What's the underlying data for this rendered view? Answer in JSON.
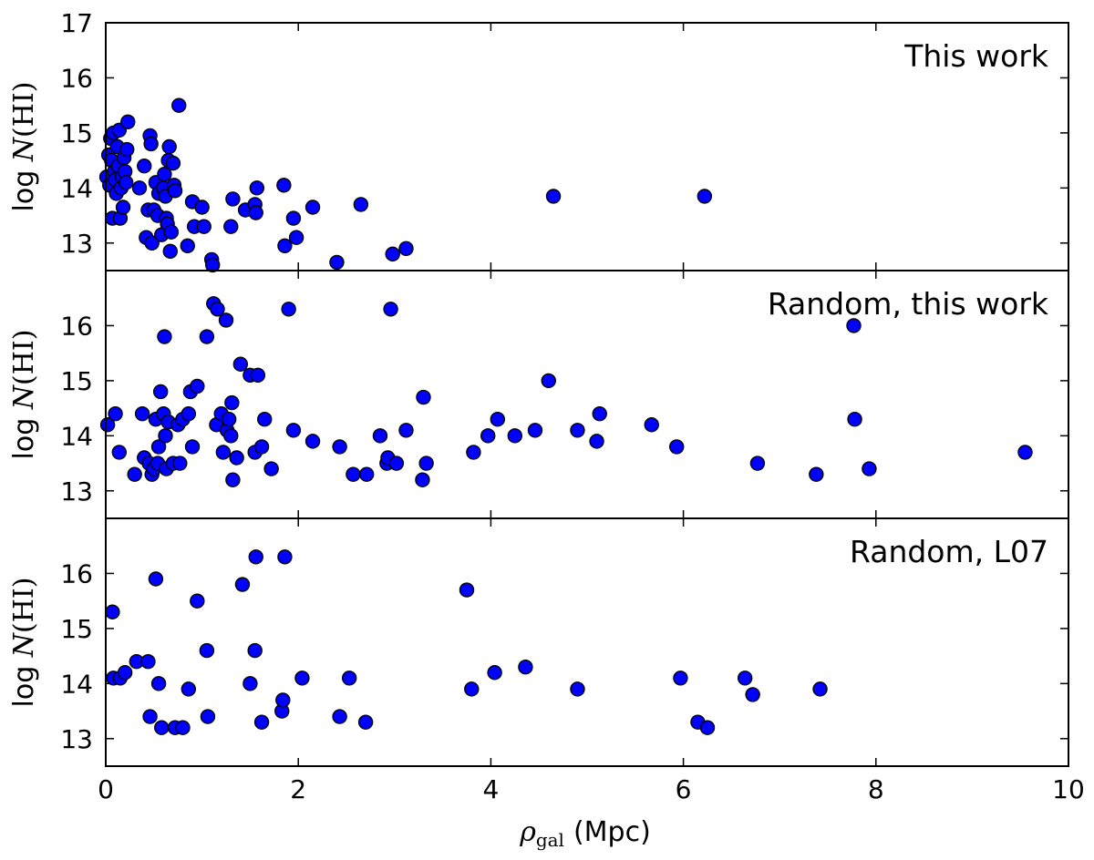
{
  "chart_data": {
    "type": "scatter",
    "x_axis": {
      "label_symbol": "ρ",
      "label_subscript": "gal",
      "label_unit": "(Mpc)",
      "range": [
        0,
        10
      ],
      "ticks": [
        0,
        2,
        4,
        6,
        8,
        10
      ]
    },
    "y_axis": {
      "label_prefix": "log",
      "label_symbol": "N",
      "label_paren": "(HI)"
    },
    "grid": false,
    "marker_color": "#0000ff",
    "panels": [
      {
        "label": "This work",
        "ylim": [
          12.5,
          17
        ],
        "yticks": [
          13,
          14,
          15,
          16,
          17
        ],
        "points": [
          [
            0.01,
            14.2
          ],
          [
            0.03,
            14.6
          ],
          [
            0.04,
            14.05
          ],
          [
            0.05,
            14.9
          ],
          [
            0.06,
            14.5
          ],
          [
            0.07,
            13.45
          ],
          [
            0.08,
            15.0
          ],
          [
            0.09,
            14.3
          ],
          [
            0.1,
            14.15
          ],
          [
            0.11,
            13.9
          ],
          [
            0.12,
            14.75
          ],
          [
            0.13,
            14.4
          ],
          [
            0.14,
            15.05
          ],
          [
            0.15,
            13.45
          ],
          [
            0.16,
            14.0
          ],
          [
            0.17,
            14.2
          ],
          [
            0.18,
            13.65
          ],
          [
            0.19,
            14.55
          ],
          [
            0.2,
            14.3
          ],
          [
            0.21,
            14.1
          ],
          [
            0.22,
            14.7
          ],
          [
            0.23,
            15.2
          ],
          [
            0.35,
            14.0
          ],
          [
            0.4,
            14.4
          ],
          [
            0.42,
            13.1
          ],
          [
            0.44,
            13.6
          ],
          [
            0.46,
            14.95
          ],
          [
            0.47,
            14.8
          ],
          [
            0.48,
            13.0
          ],
          [
            0.5,
            13.6
          ],
          [
            0.52,
            14.1
          ],
          [
            0.54,
            13.5
          ],
          [
            0.55,
            13.9
          ],
          [
            0.58,
            13.15
          ],
          [
            0.6,
            14.0
          ],
          [
            0.61,
            14.25
          ],
          [
            0.62,
            13.85
          ],
          [
            0.63,
            13.45
          ],
          [
            0.64,
            13.35
          ],
          [
            0.65,
            14.5
          ],
          [
            0.66,
            14.75
          ],
          [
            0.67,
            12.85
          ],
          [
            0.68,
            13.2
          ],
          [
            0.7,
            14.45
          ],
          [
            0.71,
            14.05
          ],
          [
            0.72,
            13.95
          ],
          [
            0.76,
            15.5
          ],
          [
            0.85,
            12.95
          ],
          [
            0.9,
            13.75
          ],
          [
            0.92,
            13.3
          ],
          [
            1.0,
            13.65
          ],
          [
            1.02,
            13.3
          ],
          [
            1.1,
            12.7
          ],
          [
            1.11,
            12.6
          ],
          [
            1.3,
            13.3
          ],
          [
            1.32,
            13.8
          ],
          [
            1.45,
            13.6
          ],
          [
            1.55,
            13.7
          ],
          [
            1.56,
            13.55
          ],
          [
            1.57,
            14.0
          ],
          [
            1.85,
            14.05
          ],
          [
            1.86,
            12.95
          ],
          [
            1.95,
            13.45
          ],
          [
            1.98,
            13.1
          ],
          [
            2.15,
            13.65
          ],
          [
            2.4,
            12.65
          ],
          [
            2.65,
            13.7
          ],
          [
            2.98,
            12.8
          ],
          [
            3.12,
            12.9
          ],
          [
            4.65,
            13.85
          ],
          [
            6.22,
            13.85
          ]
        ]
      },
      {
        "label": "Random, this work",
        "ylim": [
          12.5,
          17
        ],
        "yticks": [
          13,
          14,
          15,
          16
        ],
        "points": [
          [
            0.02,
            14.2
          ],
          [
            0.1,
            14.4
          ],
          [
            0.14,
            13.7
          ],
          [
            0.3,
            13.3
          ],
          [
            0.38,
            14.4
          ],
          [
            0.4,
            13.6
          ],
          [
            0.45,
            13.5
          ],
          [
            0.48,
            13.3
          ],
          [
            0.5,
            13.4
          ],
          [
            0.52,
            14.3
          ],
          [
            0.54,
            13.5
          ],
          [
            0.55,
            13.8
          ],
          [
            0.57,
            14.8
          ],
          [
            0.6,
            14.4
          ],
          [
            0.61,
            15.8
          ],
          [
            0.62,
            14.0
          ],
          [
            0.63,
            13.4
          ],
          [
            0.65,
            14.25
          ],
          [
            0.7,
            13.5
          ],
          [
            0.75,
            14.2
          ],
          [
            0.77,
            13.5
          ],
          [
            0.8,
            14.3
          ],
          [
            0.86,
            14.4
          ],
          [
            0.88,
            14.8
          ],
          [
            0.9,
            13.8
          ],
          [
            0.95,
            14.9
          ],
          [
            1.05,
            15.8
          ],
          [
            1.12,
            16.4
          ],
          [
            1.15,
            14.2
          ],
          [
            1.16,
            16.3
          ],
          [
            1.2,
            14.4
          ],
          [
            1.22,
            13.7
          ],
          [
            1.25,
            16.1
          ],
          [
            1.26,
            14.1
          ],
          [
            1.28,
            14.3
          ],
          [
            1.3,
            14.0
          ],
          [
            1.31,
            14.6
          ],
          [
            1.32,
            13.2
          ],
          [
            1.36,
            13.6
          ],
          [
            1.4,
            15.3
          ],
          [
            1.5,
            15.1
          ],
          [
            1.55,
            13.7
          ],
          [
            1.58,
            15.1
          ],
          [
            1.62,
            13.8
          ],
          [
            1.65,
            14.3
          ],
          [
            1.72,
            13.4
          ],
          [
            1.9,
            16.3
          ],
          [
            1.95,
            14.1
          ],
          [
            2.15,
            13.9
          ],
          [
            2.43,
            13.8
          ],
          [
            2.57,
            13.3
          ],
          [
            2.71,
            13.3
          ],
          [
            2.85,
            14.0
          ],
          [
            2.92,
            13.5
          ],
          [
            2.93,
            13.6
          ],
          [
            2.96,
            16.3
          ],
          [
            3.02,
            13.5
          ],
          [
            3.12,
            14.1
          ],
          [
            3.29,
            13.2
          ],
          [
            3.3,
            14.7
          ],
          [
            3.33,
            13.5
          ],
          [
            3.82,
            13.7
          ],
          [
            3.97,
            14.0
          ],
          [
            4.07,
            14.3
          ],
          [
            4.25,
            14.0
          ],
          [
            4.46,
            14.1
          ],
          [
            4.6,
            15.0
          ],
          [
            4.9,
            14.1
          ],
          [
            5.1,
            13.9
          ],
          [
            5.13,
            14.4
          ],
          [
            5.67,
            14.2
          ],
          [
            5.93,
            13.8
          ],
          [
            6.77,
            13.5
          ],
          [
            7.38,
            13.3
          ],
          [
            7.77,
            16.0
          ],
          [
            7.78,
            14.3
          ],
          [
            7.93,
            13.4
          ],
          [
            9.55,
            13.7
          ]
        ]
      },
      {
        "label": "Random, L07",
        "ylim": [
          12.5,
          17
        ],
        "yticks": [
          13,
          14,
          15,
          16
        ],
        "points": [
          [
            0.07,
            15.3
          ],
          [
            0.08,
            14.1
          ],
          [
            0.15,
            14.1
          ],
          [
            0.2,
            14.2
          ],
          [
            0.32,
            14.4
          ],
          [
            0.44,
            14.4
          ],
          [
            0.46,
            13.4
          ],
          [
            0.52,
            15.9
          ],
          [
            0.55,
            14.0
          ],
          [
            0.58,
            13.2
          ],
          [
            0.72,
            13.2
          ],
          [
            0.8,
            13.2
          ],
          [
            0.86,
            13.9
          ],
          [
            0.95,
            15.5
          ],
          [
            1.05,
            14.6
          ],
          [
            1.06,
            13.4
          ],
          [
            1.42,
            15.8
          ],
          [
            1.5,
            14.0
          ],
          [
            1.55,
            14.6
          ],
          [
            1.56,
            16.3
          ],
          [
            1.62,
            13.3
          ],
          [
            1.83,
            13.5
          ],
          [
            1.84,
            13.7
          ],
          [
            1.86,
            16.3
          ],
          [
            2.04,
            14.1
          ],
          [
            2.43,
            13.4
          ],
          [
            2.53,
            14.1
          ],
          [
            2.7,
            13.3
          ],
          [
            3.75,
            15.7
          ],
          [
            3.8,
            13.9
          ],
          [
            4.04,
            14.2
          ],
          [
            4.36,
            14.3
          ],
          [
            4.9,
            13.9
          ],
          [
            5.97,
            14.1
          ],
          [
            6.15,
            13.3
          ],
          [
            6.25,
            13.2
          ],
          [
            6.64,
            14.1
          ],
          [
            6.72,
            13.8
          ],
          [
            7.42,
            13.9
          ]
        ]
      }
    ]
  }
}
